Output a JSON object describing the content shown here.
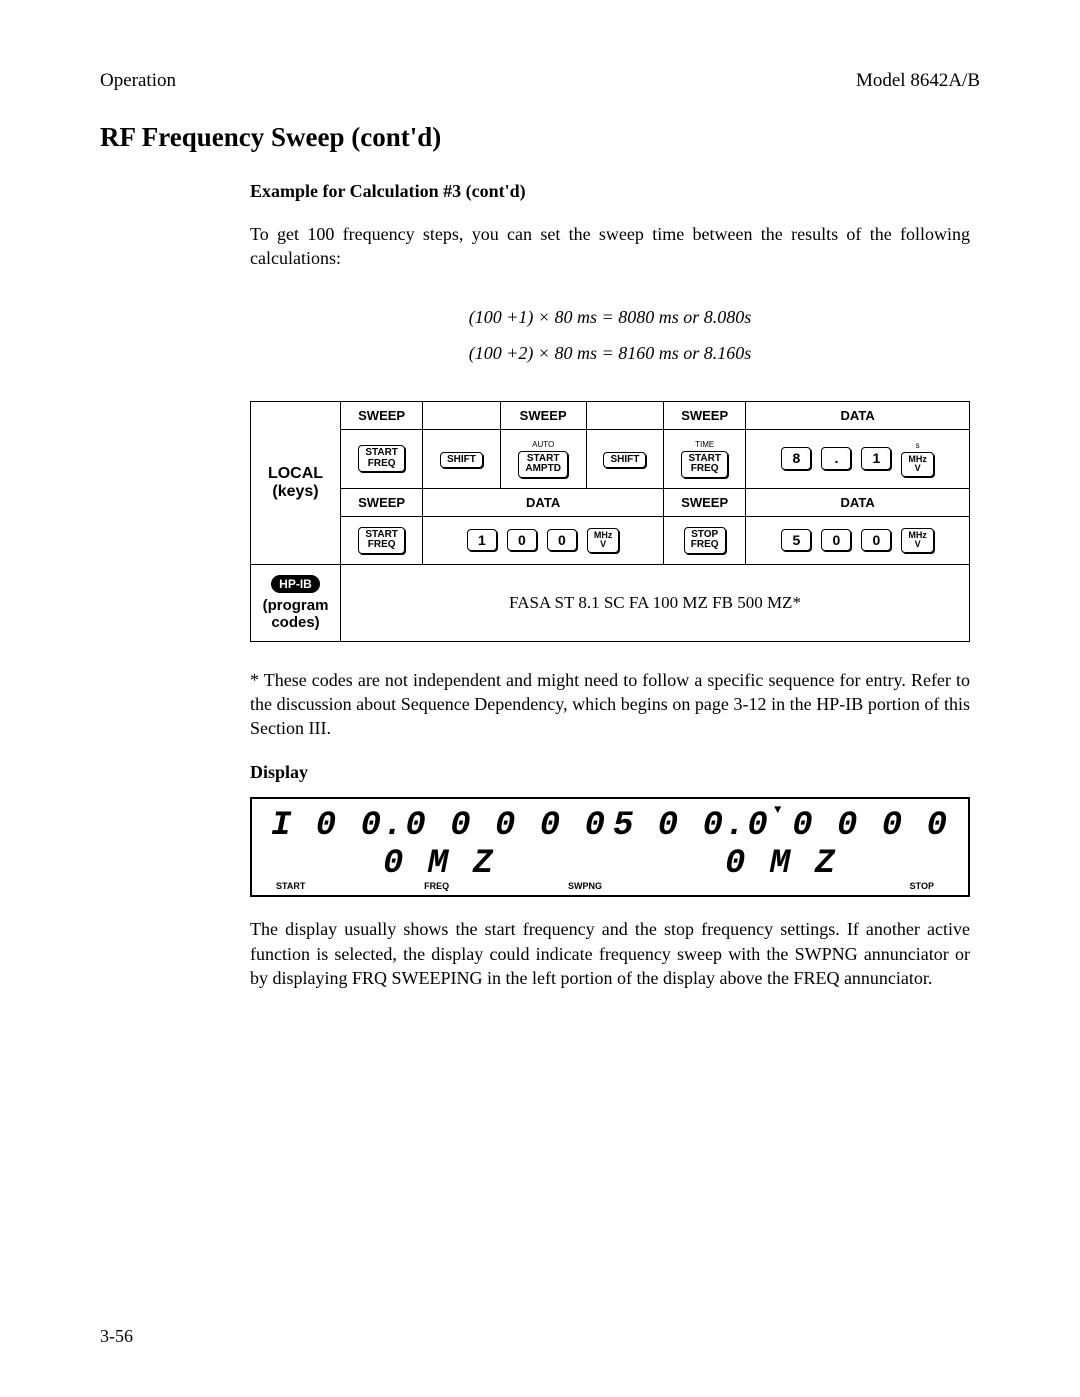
{
  "header": {
    "left": "Operation",
    "right": "Model 8642A/B"
  },
  "title": "RF Frequency Sweep (cont'd)",
  "example_head": "Example for Calculation #3 (cont'd)",
  "intro": "To get 100 frequency steps, you can set the sweep time between the results of the following calculations:",
  "eq1": "(100 +1) × 80 ms = 8080 ms or 8.080s",
  "eq2": "(100 +2) × 80 ms = 8160 ms or 8.160s",
  "table": {
    "rowlabel_local": "LOCAL\n(keys)",
    "heads_r1": [
      "SWEEP",
      "",
      "SWEEP",
      "",
      "SWEEP",
      "DATA"
    ],
    "row1": {
      "c1_key": "START\nFREQ",
      "c2_key": "SHIFT",
      "c3_top": "AUTO",
      "c3_key": "START\nAMPTD",
      "c4_key": "SHIFT",
      "c5_top": "TIME",
      "c5_key": "START\nFREQ",
      "c6": {
        "k1": "8",
        "dot": ".",
        "k2": "1",
        "unit_top": "s",
        "unit": "MHz\nV"
      }
    },
    "heads_r2": [
      "SWEEP",
      "DATA",
      "SWEEP",
      "DATA"
    ],
    "row2": {
      "c1_key": "START\nFREQ",
      "c2": {
        "k1": "1",
        "k2": "0",
        "k3": "0",
        "unit": "MHz\nV"
      },
      "c3_key": "STOP\nFREQ",
      "c4": {
        "k1": "5",
        "k2": "0",
        "k3": "0",
        "unit": "MHz\nV"
      }
    },
    "hpib_label": "HP-IB",
    "program_label": "(program codes)",
    "codes": "FASA ST 8.1 SC FA 100 MZ FB 500 MZ*"
  },
  "footnote": "*   These codes are not independent and might need to follow a specific sequence for entry. Refer to the discussion about Sequence Dependency, which begins on page 3-12 in the HP-IB portion of this Section III.",
  "display_head": "Display",
  "lcd": {
    "left_digits": "I 0 0.0 0 0 0 0 0 M Z",
    "left_annun": [
      "START",
      "FREQ",
      "SWPNG"
    ],
    "right_digits": "5 0 0.0 0 0 0 0 0 M Z",
    "right_annun": "STOP",
    "marker": "▼"
  },
  "bottom_para": "The display usually shows the start frequency and the stop frequency settings. If another active function is selected, the display could indicate frequency sweep with the SWPNG annunciator or by displaying FRQ SWEEPING in the left portion of the display above the FREQ annunciator.",
  "page_num": "3-56"
}
